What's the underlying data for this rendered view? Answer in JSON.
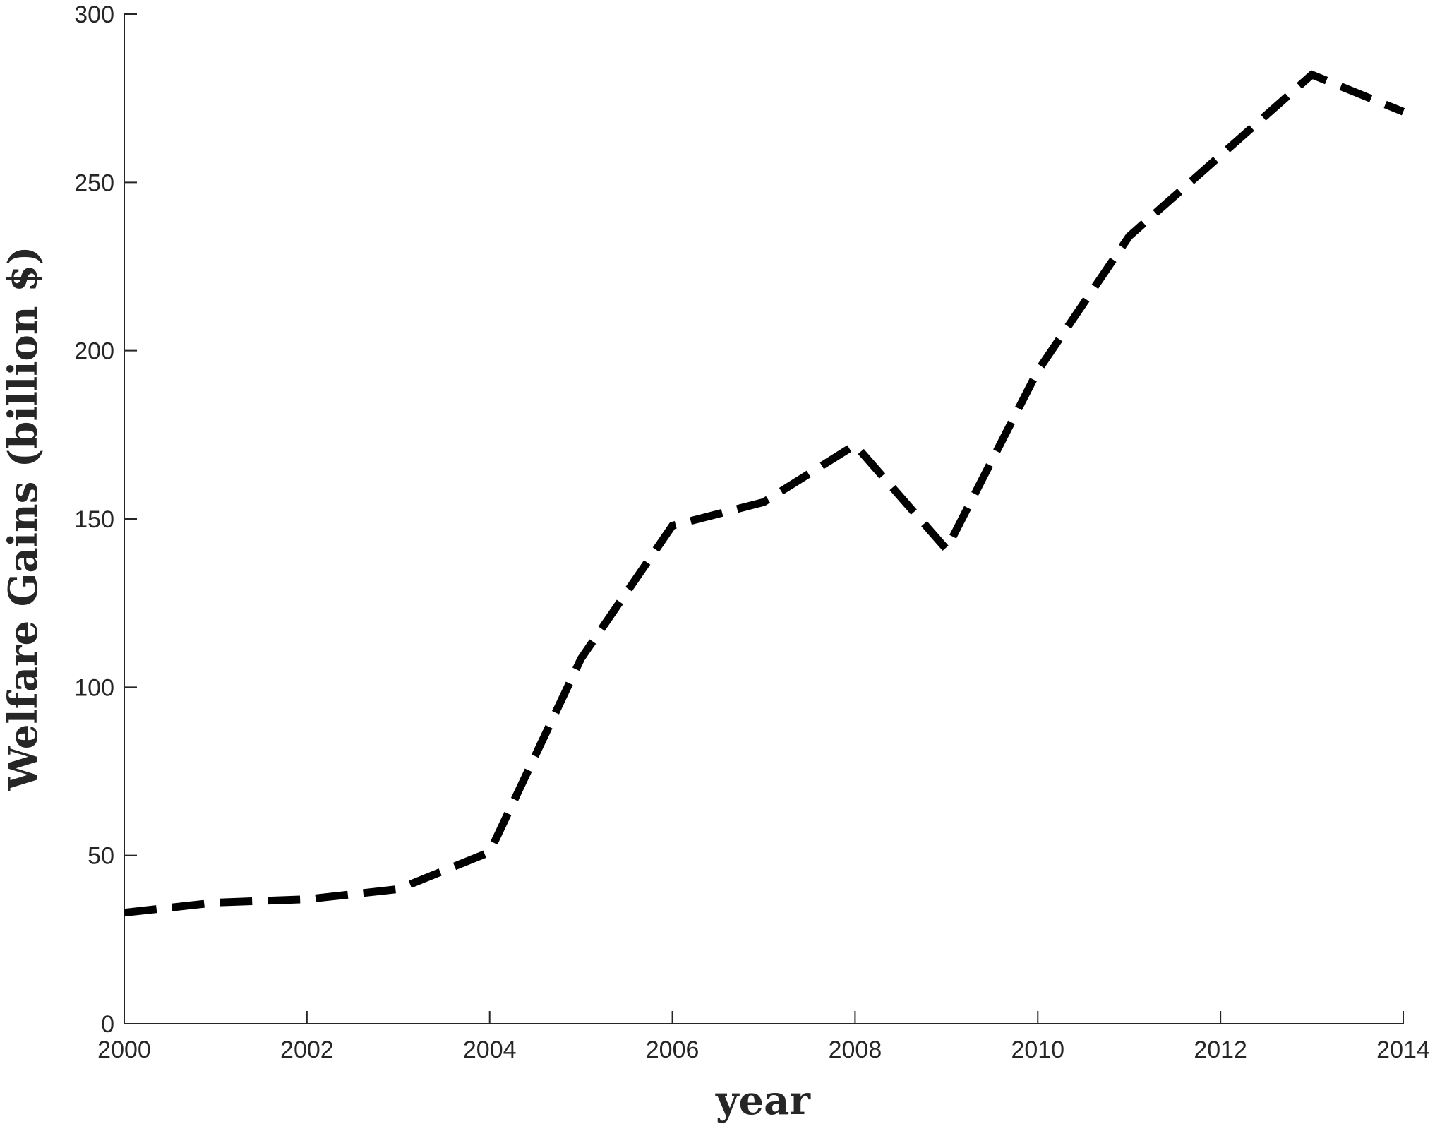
{
  "chart_data": {
    "type": "line",
    "xlabel": "year",
    "ylabel": "Welfare Gains (billion $)",
    "x": [
      2000,
      2001,
      2002,
      2003,
      2004,
      2005,
      2006,
      2007,
      2008,
      2009,
      2010,
      2011,
      2012,
      2013,
      2014
    ],
    "values": [
      33,
      36,
      37,
      40,
      51,
      108.5,
      148,
      155,
      172,
      141,
      194,
      234,
      258,
      282,
      271
    ],
    "color": "#000000",
    "line_style": "dashed",
    "xlim": [
      2000,
      2014
    ],
    "xticks": [
      2000,
      2002,
      2004,
      2006,
      2008,
      2010,
      2012,
      2014
    ],
    "ylim": [
      0,
      300
    ],
    "yticks": [
      0,
      50,
      100,
      150,
      200,
      250,
      300
    ],
    "grid": false
  }
}
